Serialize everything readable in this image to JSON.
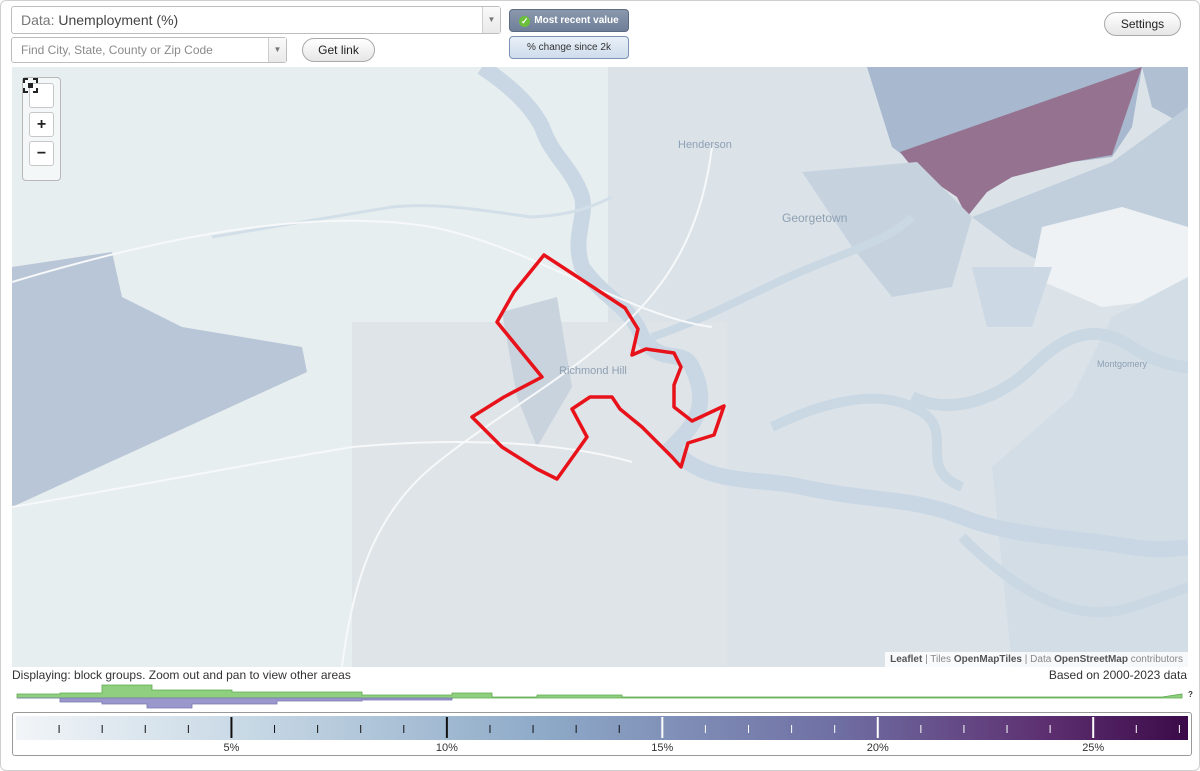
{
  "data_select": {
    "prefix": "Data:",
    "value": "Unemployment (%)"
  },
  "search": {
    "placeholder": "Find City, State, County or Zip Code"
  },
  "get_link": "Get link",
  "toggles": {
    "recent": "Most recent value",
    "change": "% change since 2k"
  },
  "settings": "Settings",
  "map": {
    "places": [
      "Henderson",
      "Georgetown",
      "Richmond Hill",
      "Montgomery"
    ],
    "attribution": {
      "leaflet": "Leaflet",
      "tiles_prefix": "| Tiles",
      "tiles": "OpenMapTiles",
      "data_prefix": "| Data",
      "data": "OpenStreetMap",
      "suffix": "contributors"
    },
    "highlight_color": "#e8121a"
  },
  "displaying": "Displaying: block groups. Zoom out and pan to view other areas",
  "based_on": "Based on 2000-2023 data",
  "histogram_mark": "?",
  "legend": {
    "ticks": [
      "5%",
      "10%",
      "15%",
      "20%",
      "25%"
    ],
    "tick_values": [
      5,
      10,
      15,
      20,
      25
    ],
    "max_value": 27.2,
    "colors": [
      "#f2f5f8",
      "#c7d8e5",
      "#8eaac8",
      "#6f6fa3",
      "#5d2f70",
      "#3b0a48"
    ]
  },
  "colors": {
    "accent": "#6f7f98",
    "hist_green": "#8fcf7f",
    "hist_purple": "#9a97cc"
  }
}
